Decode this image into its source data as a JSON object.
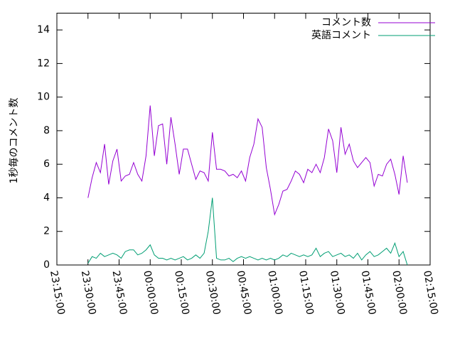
{
  "chart_data": {
    "type": "line",
    "y_label": "1秒毎のコメント数",
    "x": [
      "23:30",
      "23:32",
      "23:34",
      "23:36",
      "23:38",
      "23:40",
      "23:42",
      "23:44",
      "23:46",
      "23:48",
      "23:50",
      "23:52",
      "23:54",
      "23:56",
      "23:58",
      "00:00",
      "00:02",
      "00:04",
      "00:06",
      "00:08",
      "00:10",
      "00:12",
      "00:14",
      "00:16",
      "00:18",
      "00:20",
      "00:22",
      "00:24",
      "00:26",
      "00:28",
      "00:30",
      "00:32",
      "00:34",
      "00:36",
      "00:38",
      "00:40",
      "00:42",
      "00:44",
      "00:46",
      "00:48",
      "00:50",
      "00:52",
      "00:54",
      "00:56",
      "00:58",
      "01:00",
      "01:02",
      "01:04",
      "01:06",
      "01:08",
      "01:10",
      "01:12",
      "01:14",
      "01:16",
      "01:18",
      "01:20",
      "01:22",
      "01:24",
      "01:26",
      "01:28",
      "01:30",
      "01:32",
      "01:34",
      "01:36",
      "01:38",
      "01:40",
      "01:42",
      "01:44",
      "01:46",
      "01:48",
      "01:50",
      "01:52",
      "01:54",
      "01:56",
      "01:58",
      "02:00",
      "02:02",
      "02:04"
    ],
    "series": [
      {
        "name": "コメント数",
        "color": "#9400d3",
        "values": [
          4.0,
          5.2,
          6.1,
          5.5,
          7.2,
          4.8,
          6.2,
          6.9,
          5.0,
          5.3,
          5.4,
          6.1,
          5.4,
          5.0,
          6.5,
          9.5,
          6.5,
          8.3,
          8.4,
          6.0,
          8.8,
          7.2,
          5.4,
          6.9,
          6.9,
          6.0,
          5.1,
          5.6,
          5.5,
          5.0,
          7.9,
          5.7,
          5.7,
          5.6,
          5.3,
          5.4,
          5.2,
          5.6,
          5.0,
          6.4,
          7.2,
          8.7,
          8.2,
          5.8,
          4.5,
          3.0,
          3.6,
          4.4,
          4.5,
          5.0,
          5.6,
          5.4,
          4.9,
          5.7,
          5.5,
          6.0,
          5.5,
          6.4,
          8.1,
          7.4,
          5.5,
          8.2,
          6.6,
          7.2,
          6.2,
          5.8,
          6.1,
          6.4,
          6.1,
          4.7,
          5.4,
          5.3,
          6.0,
          6.3,
          5.4,
          4.2,
          6.5,
          4.9
        ]
      },
      {
        "name": "英語コメント",
        "color": "#009e73",
        "values": [
          0.1,
          0.5,
          0.4,
          0.7,
          0.5,
          0.6,
          0.7,
          0.6,
          0.4,
          0.8,
          0.9,
          0.9,
          0.6,
          0.7,
          0.9,
          1.2,
          0.6,
          0.4,
          0.4,
          0.3,
          0.4,
          0.3,
          0.4,
          0.5,
          0.3,
          0.4,
          0.6,
          0.4,
          0.7,
          2.0,
          4.0,
          0.4,
          0.3,
          0.3,
          0.4,
          0.2,
          0.4,
          0.5,
          0.4,
          0.5,
          0.4,
          0.3,
          0.4,
          0.3,
          0.4,
          0.3,
          0.4,
          0.6,
          0.5,
          0.7,
          0.6,
          0.5,
          0.6,
          0.5,
          0.6,
          1.0,
          0.5,
          0.7,
          0.8,
          0.5,
          0.6,
          0.7,
          0.5,
          0.6,
          0.4,
          0.7,
          0.3,
          0.6,
          0.8,
          0.5,
          0.6,
          0.8,
          1.0,
          0.7,
          1.3,
          0.5,
          0.8,
          0.0
        ]
      }
    ],
    "xlim": [
      "23:15:00",
      "02:15:00"
    ],
    "xticks": [
      "23:15:00",
      "23:30:00",
      "23:45:00",
      "00:00:00",
      "00:15:00",
      "00:30:00",
      "00:45:00",
      "01:00:00",
      "01:15:00",
      "01:30:00",
      "01:45:00",
      "02:00:00",
      "02:15:00"
    ],
    "ylim": [
      0,
      15
    ],
    "yticks": [
      0,
      2,
      4,
      6,
      8,
      10,
      12,
      14
    ],
    "legend": "top-right"
  }
}
